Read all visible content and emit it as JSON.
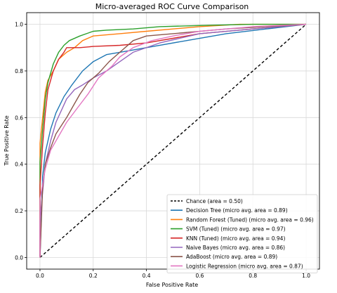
{
  "chart_data": {
    "type": "line",
    "title": "Micro-averaged ROC Curve Comparison",
    "xlabel": "False Positive Rate",
    "ylabel": "True Positive Rate",
    "xlim": [
      -0.05,
      1.05
    ],
    "ylim": [
      -0.05,
      1.05
    ],
    "xticks": [
      "0.0",
      "0.2",
      "0.4",
      "0.6",
      "0.8",
      "1.0"
    ],
    "yticks": [
      "0.0",
      "0.2",
      "0.4",
      "0.6",
      "0.8",
      "1.0"
    ],
    "grid": true,
    "legend_position": "lower-right",
    "series": [
      {
        "name": "Chance (area = 0.50)",
        "color": "#000000",
        "dashed": true,
        "x": [
          0,
          1
        ],
        "y": [
          0,
          1
        ]
      },
      {
        "name": "Decision Tree (micro avg. area = 0.89)",
        "color": "#1f77b4",
        "x": [
          0,
          0.01,
          0.02,
          0.04,
          0.06,
          0.09,
          0.12,
          0.16,
          0.2,
          0.25,
          0.3,
          0.4,
          0.55,
          0.7,
          0.85,
          1.0
        ],
        "y": [
          0,
          0.35,
          0.45,
          0.55,
          0.62,
          0.69,
          0.74,
          0.8,
          0.84,
          0.87,
          0.88,
          0.9,
          0.93,
          0.96,
          0.98,
          1.0
        ]
      },
      {
        "name": "Random Forest (Tuned) (micro avg. area = 0.96)",
        "color": "#ff7f0e",
        "x": [
          0,
          0.0,
          0.01,
          0.02,
          0.03,
          0.05,
          0.07,
          0.1,
          0.13,
          0.16,
          0.2,
          0.3,
          0.4,
          0.5,
          0.6,
          0.75,
          1.0
        ],
        "y": [
          0,
          0.49,
          0.6,
          0.71,
          0.76,
          0.8,
          0.85,
          0.88,
          0.9,
          0.93,
          0.95,
          0.96,
          0.97,
          0.98,
          0.99,
          1.0,
          1.0
        ]
      },
      {
        "name": "SVM (Tuned) (micro avg. area = 0.97)",
        "color": "#2ca02c",
        "x": [
          0,
          0.0,
          0.01,
          0.02,
          0.03,
          0.05,
          0.07,
          0.09,
          0.11,
          0.15,
          0.2,
          0.25,
          0.35,
          0.45,
          0.6,
          0.8,
          1.0
        ],
        "y": [
          0,
          0.41,
          0.55,
          0.68,
          0.75,
          0.83,
          0.88,
          0.91,
          0.93,
          0.95,
          0.97,
          0.975,
          0.98,
          0.99,
          0.995,
          1.0,
          1.0
        ]
      },
      {
        "name": "KNN (Tuned) (micro avg. area = 0.94)",
        "color": "#d62728",
        "x": [
          0,
          0.0,
          0.01,
          0.02,
          0.03,
          0.05,
          0.07,
          0.09,
          0.1,
          0.15,
          0.2,
          0.3,
          0.4,
          0.5,
          0.6,
          0.8,
          1.0
        ],
        "y": [
          0,
          0.31,
          0.48,
          0.62,
          0.72,
          0.8,
          0.85,
          0.88,
          0.9,
          0.9,
          0.905,
          0.91,
          0.92,
          0.94,
          0.96,
          0.98,
          1.0
        ]
      },
      {
        "name": "Naive Bayes (micro avg. area = 0.86)",
        "color": "#9467bd",
        "x": [
          0,
          0.0,
          0.02,
          0.04,
          0.06,
          0.08,
          0.1,
          0.13,
          0.16,
          0.2,
          0.25,
          0.3,
          0.35,
          0.45,
          0.6,
          0.8,
          1.0
        ],
        "y": [
          0,
          0.16,
          0.4,
          0.5,
          0.58,
          0.63,
          0.68,
          0.72,
          0.74,
          0.77,
          0.8,
          0.84,
          0.88,
          0.92,
          0.96,
          0.98,
          1.0
        ]
      },
      {
        "name": "AdaBoost (micro avg. area = 0.89)",
        "color": "#8c564b",
        "x": [
          0,
          0.01,
          0.02,
          0.04,
          0.06,
          0.1,
          0.13,
          0.15,
          0.18,
          0.22,
          0.26,
          0.3,
          0.35,
          0.4,
          0.5,
          0.7,
          1.0
        ],
        "y": [
          0,
          0.3,
          0.4,
          0.47,
          0.53,
          0.6,
          0.66,
          0.7,
          0.75,
          0.79,
          0.84,
          0.88,
          0.93,
          0.95,
          0.96,
          0.98,
          1.0
        ]
      },
      {
        "name": "Logistic Regression (micro avg. area = 0.87)",
        "color": "#e377c2",
        "x": [
          0,
          0.0,
          0.02,
          0.04,
          0.07,
          0.1,
          0.14,
          0.18,
          0.22,
          0.27,
          0.3,
          0.35,
          0.42,
          0.5,
          0.6,
          0.8,
          1.0
        ],
        "y": [
          0,
          0.25,
          0.38,
          0.46,
          0.52,
          0.58,
          0.64,
          0.7,
          0.77,
          0.82,
          0.86,
          0.9,
          0.93,
          0.95,
          0.97,
          0.99,
          1.0
        ]
      }
    ]
  }
}
